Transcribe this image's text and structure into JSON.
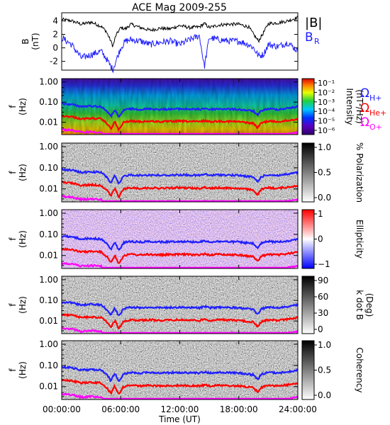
{
  "title": "ACE Mag 2009-255",
  "x_axis": {
    "label": "Time (UT)",
    "ticks": [
      "00:00:00",
      "06:00:00",
      "12:00:00",
      "18:00:00",
      "24:00:00"
    ]
  },
  "colors": {
    "B_total": "#000000",
    "B_R": "#2020ff",
    "omega_H": "#2020ff",
    "omega_He": "#ff0000",
    "omega_O": "#ff00ff"
  },
  "legend": {
    "b_total": "|B|",
    "b_r": "B",
    "b_r_sub": "R",
    "omega_h_sub": "H+",
    "omega_he_sub": "He+",
    "omega_o_sub": "O+"
  },
  "chart_data": [
    {
      "type": "line",
      "name": "B panel",
      "ylabel": "B",
      "yunit": "(nT)",
      "ylim": [
        -3.3,
        5.2
      ],
      "yticks": [
        "4",
        "2",
        "0",
        "-2"
      ],
      "x_hours": [
        0,
        1,
        2,
        3,
        4,
        4.5,
        5,
        5.2,
        5.5,
        6,
        6.5,
        7,
        8,
        9,
        10,
        11,
        12,
        13,
        14,
        14.5,
        15,
        16,
        17,
        18,
        19,
        19.5,
        20,
        20.5,
        21,
        22,
        23,
        24
      ],
      "series": [
        {
          "name": "|B|",
          "values": [
            4.2,
            4.0,
            3.5,
            3.8,
            3.2,
            2.5,
            1.0,
            0.2,
            1.8,
            3.0,
            2.8,
            3.5,
            3.0,
            2.6,
            2.9,
            2.8,
            3.3,
            3.0,
            3.1,
            3.6,
            3.0,
            3.4,
            3.5,
            3.5,
            3.1,
            2.0,
            1.0,
            2.2,
            3.6,
            3.7,
            4.0,
            4.5
          ]
        },
        {
          "name": "B_R",
          "values": [
            1.5,
            0.5,
            -1.5,
            -1.0,
            -0.5,
            -1.5,
            -2.8,
            -3.2,
            -2.0,
            0.0,
            1.0,
            1.2,
            1.0,
            0.5,
            0.8,
            1.0,
            0.5,
            1.2,
            1.8,
            -2.8,
            1.5,
            1.2,
            1.0,
            1.0,
            0.5,
            0.0,
            -1.2,
            -1.0,
            0.5,
            0.2,
            0.8,
            -0.5
          ]
        }
      ]
    },
    {
      "type": "heatmap",
      "name": "Intensity",
      "ylabel": "f",
      "yunit": "(Hz)",
      "yticks": [
        "1.00",
        "0.10",
        "0.01"
      ],
      "colorbar_label": "Intensity",
      "colorbar_unit": "(nT²/Hz)",
      "colorbar_ticks": [
        "10⁻¹",
        "10⁻²",
        "10⁻³",
        "10⁻⁴",
        "10⁻⁵",
        "10⁻⁶"
      ]
    },
    {
      "type": "heatmap",
      "name": "Polarization",
      "ylabel": "f",
      "yunit": "(Hz)",
      "yticks": [
        "1.00",
        "0.10",
        "0.01"
      ],
      "colorbar_label": "% Polarization",
      "colorbar_ticks": [
        "1.0",
        "0.5",
        "0.0"
      ]
    },
    {
      "type": "heatmap",
      "name": "Ellipticity",
      "ylabel": "f",
      "yunit": "(Hz)",
      "yticks": [
        "1.00",
        "0.10",
        "0.01"
      ],
      "colorbar_label": "Ellipticity",
      "colorbar_ticks": [
        "1",
        "0",
        "−1"
      ]
    },
    {
      "type": "heatmap",
      "name": "k dot B",
      "ylabel": "f",
      "yunit": "(Hz)",
      "yticks": [
        "1.00",
        "0.10",
        "0.01"
      ],
      "colorbar_label": "k dot B",
      "colorbar_unit": "(Deg)",
      "colorbar_ticks": [
        "90",
        "60",
        "30",
        "0"
      ]
    },
    {
      "type": "heatmap",
      "name": "Coherency",
      "ylabel": "f",
      "yunit": "(Hz)",
      "yticks": [
        "1.00",
        "0.10",
        "0.01"
      ],
      "colorbar_label": "Coherency",
      "colorbar_ticks": [
        "1.0",
        "0.5",
        "0.0"
      ]
    }
  ]
}
